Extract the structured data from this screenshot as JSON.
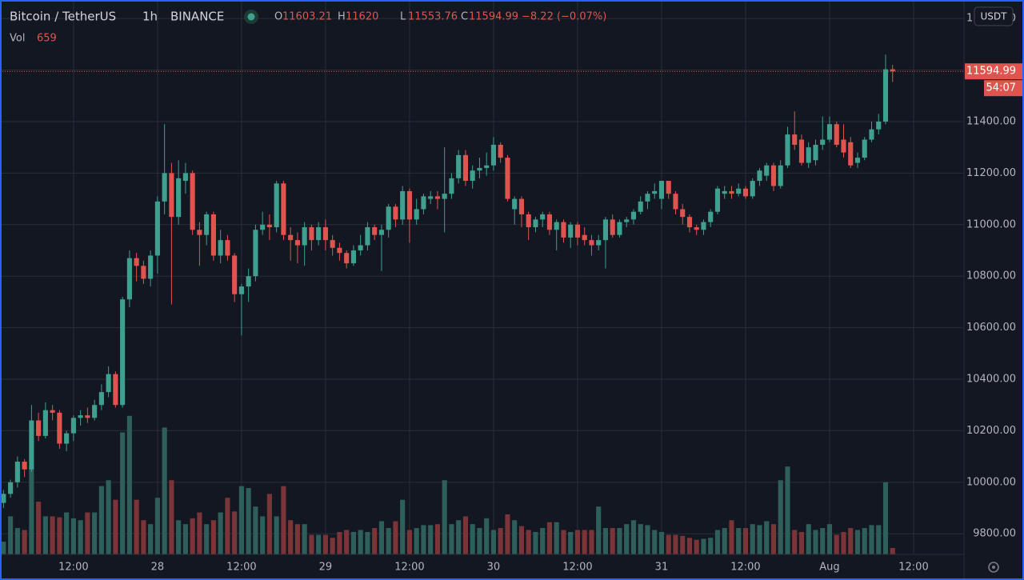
{
  "chart_data": {
    "type": "candlestick",
    "title": "Bitcoin / TetherUS",
    "interval": "1h",
    "exchange": "BINANCE",
    "ohlc_labels": [
      "O",
      "H",
      "L",
      "C"
    ],
    "change": "−8.22 (−0.07%)",
    "volume_label": "Vol",
    "countdown": "54:07",
    "currency": "USDT",
    "up_color": "#3fa08f",
    "down_color": "#e0544f",
    "up_volume_color": "#2e5f5b",
    "down_volume_color": "#7b3437",
    "grid": true,
    "xlim": [
      -0.5,
      137.2
    ],
    "ylim": [
      9720,
      11872
    ],
    "vlim": [
      0,
      20000
    ],
    "xticks": [
      {
        "value": 10,
        "label": "12:00"
      },
      {
        "value": 22,
        "label": "28"
      },
      {
        "value": 34,
        "label": "12:00"
      },
      {
        "value": 46,
        "label": "29"
      },
      {
        "value": 58,
        "label": "12:00"
      },
      {
        "value": 70,
        "label": "30"
      },
      {
        "value": 82,
        "label": "12:00"
      },
      {
        "value": 94,
        "label": "31"
      },
      {
        "value": 106,
        "label": "12:00"
      },
      {
        "value": 118,
        "label": "Aug"
      },
      {
        "value": 130,
        "label": "12:00"
      }
    ],
    "yticks": [
      {
        "value": 9800,
        "label": "9800.00"
      },
      {
        "value": 10000,
        "label": "10000.00"
      },
      {
        "value": 10200,
        "label": "10200.00"
      },
      {
        "value": 10400,
        "label": "10400.00"
      },
      {
        "value": 10600,
        "label": "10600.00"
      },
      {
        "value": 10800,
        "label": "10800.00"
      },
      {
        "value": 11000,
        "label": "11000.00"
      },
      {
        "value": 11200,
        "label": "11200.00"
      },
      {
        "value": 11400,
        "label": "11400.00"
      },
      {
        "value": 11600,
        "label": "11600.00"
      },
      {
        "value": 11800,
        "label": "11800.00"
      }
    ],
    "x": [
      0,
      1,
      2,
      3,
      4,
      5,
      6,
      7,
      8,
      9,
      10,
      11,
      12,
      13,
      14,
      15,
      16,
      17,
      18,
      19,
      20,
      21,
      22,
      23,
      24,
      25,
      26,
      27,
      28,
      29,
      30,
      31,
      32,
      33,
      34,
      35,
      36,
      37,
      38,
      39,
      40,
      41,
      42,
      43,
      44,
      45,
      46,
      47,
      48,
      49,
      50,
      51,
      52,
      53,
      54,
      55,
      56,
      57,
      58,
      59,
      60,
      61,
      62,
      63,
      64,
      65,
      66,
      67,
      68,
      69,
      70,
      71,
      72,
      73,
      74,
      75,
      76,
      77,
      78,
      79,
      80,
      81,
      82,
      83,
      84,
      85,
      86,
      87,
      88,
      89,
      90,
      91,
      92,
      93,
      94,
      95,
      96,
      97,
      98,
      99,
      100,
      101,
      102,
      103,
      104,
      105,
      106,
      107,
      108,
      109,
      110,
      111,
      112,
      113,
      114,
      115,
      116,
      117,
      118,
      119,
      120,
      121,
      122,
      123,
      124,
      125,
      126,
      127
    ],
    "open": [
      9920,
      9955,
      10000,
      10080,
      10050,
      10240,
      10180,
      10280,
      10270,
      10150,
      10190,
      10250,
      10260,
      10250,
      10300,
      10350,
      10420,
      10300,
      10710,
      10870,
      10840,
      10790,
      10880,
      11090,
      11200,
      11030,
      11170,
      11200,
      10980,
      10960,
      11040,
      10880,
      10940,
      10880,
      10730,
      10760,
      10800,
      10980,
      11000,
      10990,
      11160,
      10960,
      10940,
      10920,
      10990,
      10940,
      10990,
      10940,
      10910,
      10890,
      10850,
      10900,
      10920,
      10990,
      10960,
      10980,
      11070,
      11020,
      11130,
      11020,
      11060,
      11100,
      11110,
      11100,
      11120,
      11180,
      11270,
      11170,
      11210,
      11220,
      11230,
      11310,
      11260,
      11060,
      11100,
      11040,
      10990,
      11020,
      11040,
      10980,
      11010,
      10950,
      11000,
      10960,
      10940,
      10920,
      10940,
      11020,
      10960,
      11010,
      11020,
      11050,
      11090,
      11120,
      11100,
      11170,
      11120,
      11060,
      11030,
      10990,
      10980,
      11010,
      11050,
      11120,
      11130,
      11120,
      11140,
      11110,
      11170,
      11190,
      11230,
      11150,
      11230,
      11350,
      11330,
      11240,
      11250,
      11310,
      11330,
      11390,
      11330,
      11320,
      11240,
      11260,
      11330,
      11370,
      11400,
      11603.21
    ],
    "high": [
      9970,
      10010,
      10100,
      10090,
      10300,
      10270,
      10310,
      10300,
      10280,
      10200,
      10260,
      10280,
      10290,
      10320,
      10380,
      10450,
      10430,
      10720,
      10900,
      10890,
      10860,
      10900,
      11110,
      11390,
      11240,
      11250,
      11240,
      11210,
      11010,
      11050,
      11050,
      10980,
      10960,
      10890,
      10770,
      10830,
      11000,
      11050,
      11040,
      11170,
      11170,
      10990,
      10970,
      11010,
      11000,
      11010,
      11020,
      10960,
      10930,
      10900,
      10920,
      10960,
      11010,
      11000,
      11000,
      11080,
      11080,
      11150,
      11140,
      11100,
      11120,
      11130,
      11130,
      11300,
      11200,
      11290,
      11290,
      11230,
      11260,
      11280,
      11340,
      11320,
      11270,
      11110,
      11110,
      11050,
      11030,
      11050,
      11050,
      11020,
      11020,
      11010,
      11010,
      10990,
      10960,
      10960,
      11030,
      11040,
      11020,
      11030,
      11060,
      11110,
      11130,
      11160,
      11170,
      11170,
      11130,
      11080,
      11040,
      11000,
      11020,
      11060,
      11150,
      11150,
      11150,
      11160,
      11150,
      11180,
      11220,
      11240,
      11240,
      11250,
      11380,
      11440,
      11350,
      11320,
      11330,
      11420,
      11420,
      11400,
      11390,
      11340,
      11280,
      11340,
      11400,
      11430,
      11660,
      11620
    ],
    "low": [
      9900,
      9940,
      9980,
      10020,
      10040,
      10160,
      10170,
      10240,
      10130,
      10120,
      10160,
      10220,
      10230,
      10240,
      10280,
      10330,
      10290,
      10290,
      10680,
      10780,
      10770,
      10760,
      10810,
      11040,
      10690,
      11000,
      11120,
      10960,
      10840,
      10920,
      10860,
      10850,
      10860,
      10700,
      10570,
      10700,
      10780,
      10960,
      10940,
      10970,
      10940,
      10860,
      10850,
      10840,
      10900,
      10920,
      10900,
      10880,
      10860,
      10830,
      10840,
      10880,
      10900,
      10940,
      10820,
      10950,
      10990,
      11000,
      10930,
      11000,
      11040,
      11080,
      11060,
      10970,
      11100,
      11160,
      11150,
      11140,
      11180,
      11190,
      11210,
      11240,
      11090,
      11000,
      10990,
      10940,
      10970,
      10990,
      10960,
      10900,
      10930,
      10910,
      10920,
      10920,
      10880,
      10900,
      10830,
      10950,
      10950,
      10990,
      11000,
      11040,
      11060,
      11100,
      11060,
      11100,
      11040,
      11000,
      10970,
      10960,
      10960,
      10990,
      11040,
      11100,
      11100,
      11110,
      11100,
      11100,
      11150,
      11170,
      11130,
      11140,
      11220,
      11290,
      11230,
      11220,
      11230,
      11290,
      11320,
      11300,
      11260,
      11220,
      11220,
      11250,
      11320,
      11350,
      11390,
      11553.76
    ],
    "close": [
      9955,
      10000,
      10080,
      10050,
      10240,
      10180,
      10280,
      10270,
      10150,
      10190,
      10250,
      10260,
      10250,
      10300,
      10350,
      10420,
      10300,
      10710,
      10870,
      10840,
      10790,
      10880,
      11090,
      11200,
      11030,
      11180,
      11200,
      10980,
      10960,
      11040,
      10880,
      10940,
      10880,
      10730,
      10760,
      10800,
      10980,
      11000,
      10990,
      11160,
      10960,
      10940,
      10920,
      10990,
      10940,
      10990,
      10940,
      10910,
      10890,
      10850,
      10900,
      10920,
      10990,
      10960,
      10980,
      11070,
      11020,
      11130,
      11020,
      11060,
      11110,
      11110,
      11100,
      11120,
      11180,
      11270,
      11170,
      11210,
      11220,
      11230,
      11310,
      11260,
      11100,
      11100,
      11040,
      10990,
      11020,
      11040,
      10980,
      11010,
      10950,
      11000,
      10950,
      10940,
      10920,
      10940,
      11020,
      10960,
      11010,
      11020,
      11050,
      11090,
      11120,
      11130,
      11170,
      11120,
      11060,
      11030,
      10990,
      10980,
      11010,
      11050,
      11140,
      11130,
      11120,
      11140,
      11110,
      11170,
      11210,
      11230,
      11150,
      11230,
      11350,
      11310,
      11240,
      11300,
      11310,
      11330,
      11390,
      11310,
      11280,
      11230,
      11260,
      11330,
      11370,
      11400,
      11603,
      11594.99
    ],
    "volume": [
      1300,
      3900,
      2700,
      2500,
      8900,
      5400,
      3900,
      3900,
      3800,
      4300,
      3700,
      3500,
      4300,
      4300,
      7000,
      7600,
      5600,
      12500,
      14200,
      5600,
      3500,
      3100,
      5800,
      13000,
      7600,
      3500,
      3100,
      3700,
      4300,
      3100,
      3500,
      4300,
      5800,
      4400,
      7000,
      6800,
      4900,
      3900,
      6200,
      3900,
      7000,
      3500,
      3100,
      3100,
      2000,
      2000,
      2000,
      1700,
      2300,
      2500,
      2300,
      2500,
      2300,
      2700,
      3400,
      2700,
      3400,
      5600,
      2500,
      2700,
      3000,
      3000,
      3100,
      7600,
      3100,
      3500,
      3900,
      3100,
      2700,
      3700,
      2500,
      2700,
      4100,
      3500,
      2900,
      2500,
      2300,
      2700,
      3300,
      3300,
      2500,
      2300,
      2500,
      2500,
      2500,
      4900,
      2700,
      2700,
      2700,
      3100,
      3500,
      3100,
      3000,
      2500,
      2300,
      2000,
      2000,
      1900,
      1700,
      1500,
      1600,
      1700,
      2500,
      2700,
      3500,
      2700,
      2700,
      3100,
      3000,
      3400,
      3100,
      7600,
      9000,
      2500,
      2300,
      3100,
      2500,
      2700,
      3100,
      2000,
      2300,
      2700,
      2500,
      2700,
      3000,
      3000,
      7400,
      659
    ]
  }
}
